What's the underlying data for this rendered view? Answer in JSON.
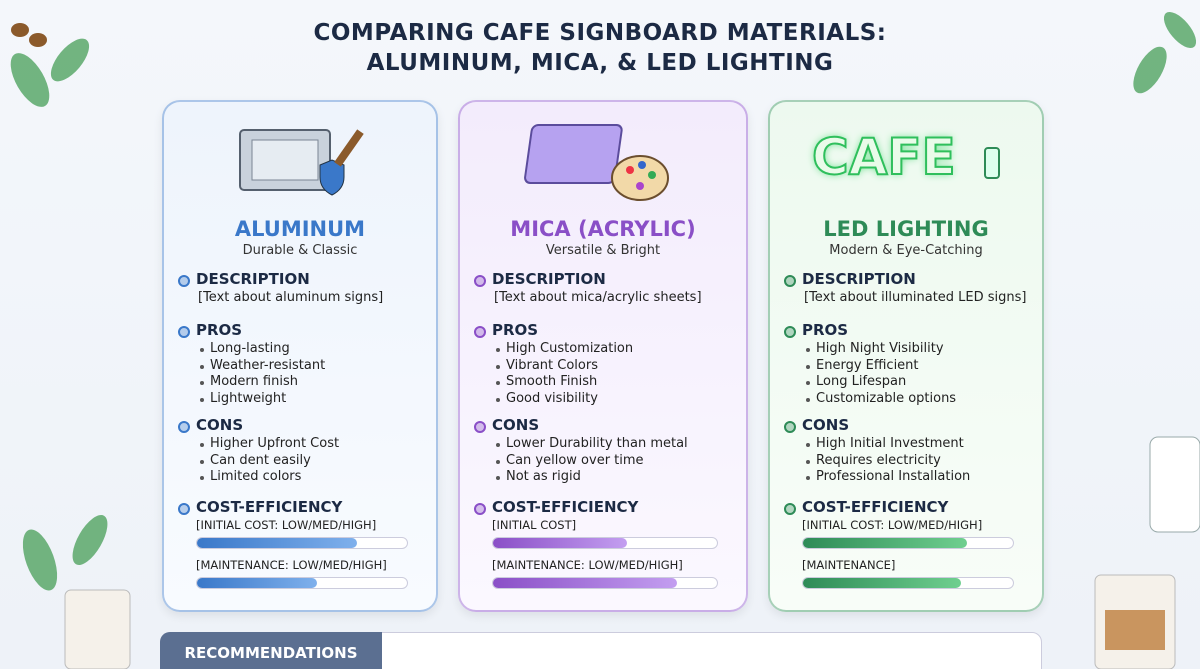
{
  "title": [
    "COMPARING CAFE SIGNBOARD MATERIALS:",
    "ALUMINUM, MICA, & LED LIGHTING"
  ],
  "cards": [
    {
      "name": "ALUMINUM",
      "tagline": "Durable & Classic",
      "color": "#3a78c9",
      "description": {
        "heading": "DESCRIPTION",
        "text": "[Text about aluminum signs]"
      },
      "pros": {
        "heading": "PROS",
        "items": [
          "Long-lasting",
          "Weather-resistant",
          "Modern finish",
          "Lightweight"
        ]
      },
      "cons": {
        "heading": "CONS",
        "items": [
          "Higher Upfront Cost",
          "Can dent easily",
          "Limited colors"
        ]
      },
      "cost": {
        "heading": "COST-EFFICIENCY",
        "labels": [
          "[INITIAL COST: LOW/MED/HIGH]",
          "[MAINTENANCE: LOW/MED/HIGH]"
        ]
      }
    },
    {
      "name": "MICA (ACRYLIC)",
      "tagline": "Versatile & Bright",
      "color": "#8a4fc7",
      "description": {
        "heading": "DESCRIPTION",
        "text": "[Text about mica/acrylic sheets]"
      },
      "pros": {
        "heading": "PROS",
        "items": [
          "High Customization",
          "Vibrant Colors",
          "Smooth Finish",
          "Good visibility"
        ]
      },
      "cons": {
        "heading": "CONS",
        "items": [
          "Lower Durability than metal",
          "Can yellow over time",
          "Not as rigid"
        ]
      },
      "cost": {
        "heading": "COST-EFFICIENCY",
        "labels": [
          "[INITIAL COST]",
          "[MAINTENANCE: LOW/MED/HIGH]"
        ]
      }
    },
    {
      "name": "LED LIGHTING",
      "tagline": "Modern & Eye-Catching",
      "color": "#2e8b57",
      "icon_text": "CAFE",
      "description": {
        "heading": "DESCRIPTION",
        "text": "[Text about illuminated LED signs]"
      },
      "pros": {
        "heading": "PROS",
        "items": [
          "High Night Visibility",
          "Energy Efficient",
          "Long Lifespan",
          "Customizable options"
        ]
      },
      "cons": {
        "heading": "CONS",
        "items": [
          "High Initial Investment",
          "Requires electricity",
          "Professional Installation"
        ]
      },
      "cost": {
        "heading": "COST-EFFICIENCY",
        "labels": [
          "[INITIAL COST: LOW/MED/HIGH]",
          "[MAINTENANCE]"
        ]
      }
    }
  ],
  "recommendations": "RECOMMENDATIONS"
}
